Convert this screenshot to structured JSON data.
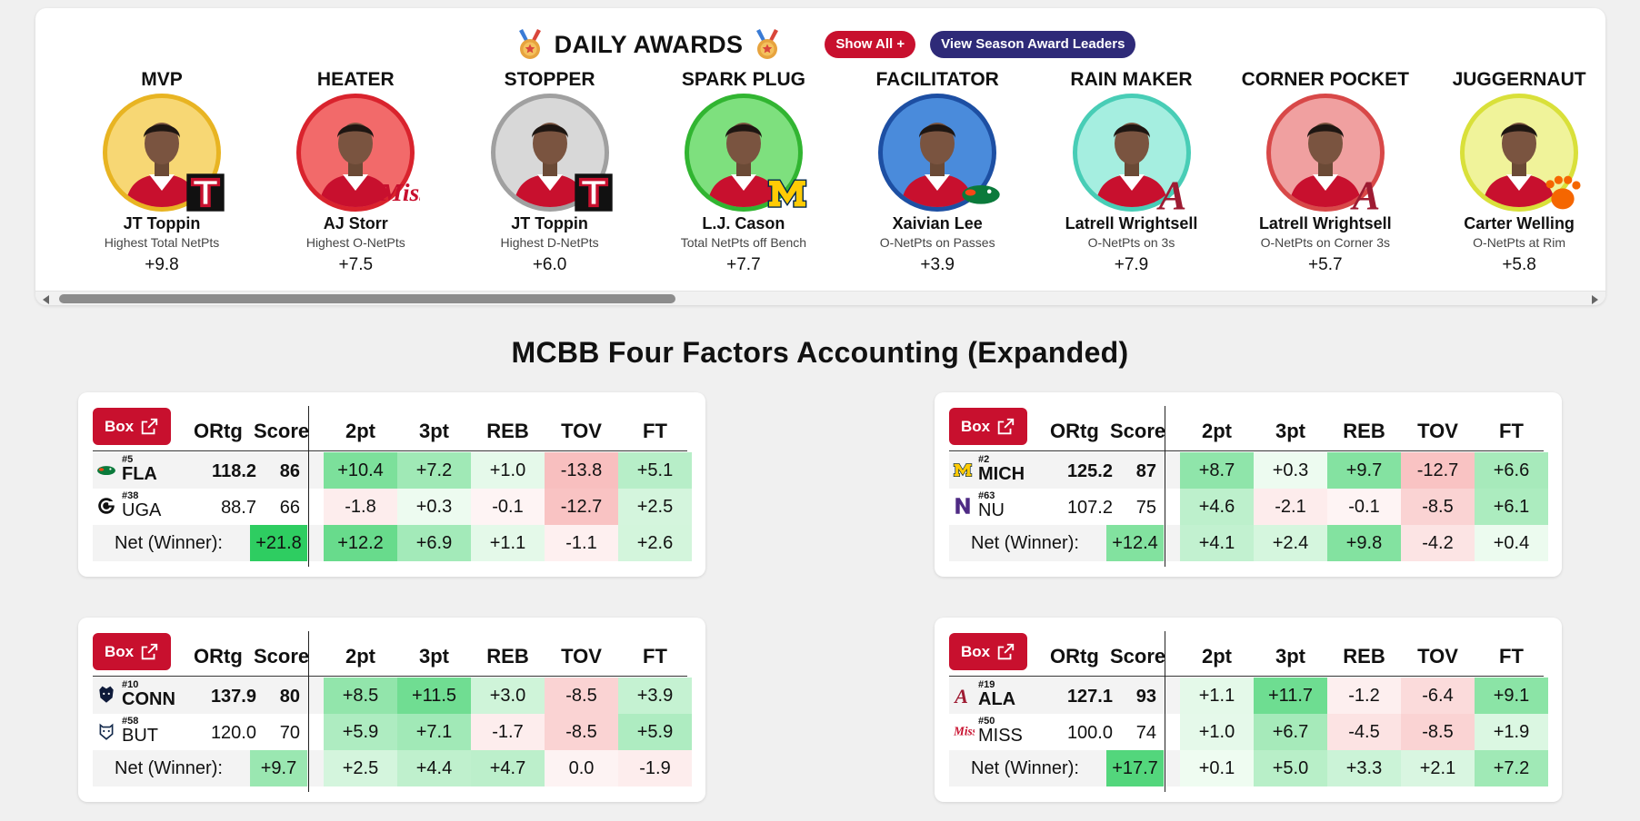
{
  "awards": {
    "title": "DAILY AWARDS",
    "show_all_label": "Show All +",
    "season_leaders_label": "View Season Award Leaders",
    "items": [
      {
        "title": "MVP",
        "player": "JT Toppin",
        "desc": "Highest Total NetPts",
        "value": "+9.8",
        "ring": "#e8b422",
        "bg": "#f7d774",
        "logo": "texas-tech-logo"
      },
      {
        "title": "HEATER",
        "player": "AJ Storr",
        "desc": "Highest O-NetPts",
        "value": "+7.5",
        "ring": "#d9232d",
        "bg": "#f26a6a",
        "logo": "ole-miss-logo"
      },
      {
        "title": "STOPPER",
        "player": "JT Toppin",
        "desc": "Highest D-NetPts",
        "value": "+6.0",
        "ring": "#a0a0a0",
        "bg": "#d8d8d8",
        "logo": "texas-tech-logo"
      },
      {
        "title": "SPARK PLUG",
        "player": "L.J. Cason",
        "desc": "Total NetPts off Bench",
        "value": "+7.7",
        "ring": "#31b531",
        "bg": "#7ee07e",
        "logo": "michigan-logo"
      },
      {
        "title": "FACILITATOR",
        "player": "Xaivian Lee",
        "desc": "O-NetPts on Passes",
        "value": "+3.9",
        "ring": "#1d4fa3",
        "bg": "#4a8bdb",
        "logo": "florida-logo"
      },
      {
        "title": "RAIN MAKER",
        "player": "Latrell Wrightsell",
        "desc": "O-NetPts on 3s",
        "value": "+7.9",
        "ring": "#48cdb6",
        "bg": "#a5eee0",
        "logo": "alabama-logo"
      },
      {
        "title": "CORNER POCKET",
        "player": "Latrell Wrightsell",
        "desc": "O-NetPts on Corner 3s",
        "value": "+5.7",
        "ring": "#d84848",
        "bg": "#f0a0a0",
        "logo": "alabama-logo"
      },
      {
        "title": "JUGGERNAUT",
        "player": "Carter Welling",
        "desc": "O-NetPts at Rim",
        "value": "+5.8",
        "ring": "#d9e03a",
        "bg": "#f0f39a",
        "logo": "clemson-logo"
      }
    ]
  },
  "section_title": "MCBB Four Factors Accounting (Expanded)",
  "table_headers": {
    "box": "Box",
    "ortg": "ORtg",
    "score": "Score",
    "factors": [
      "2pt",
      "3pt",
      "REB",
      "TOV",
      "FT"
    ]
  },
  "colors": {
    "brand_red": "#c8102e",
    "navy_pill": "#2e2a78",
    "positive_strong": "#2ecc5f",
    "negative": "#f7c6c6"
  },
  "games": [
    {
      "teams": [
        {
          "rank": "#5",
          "name": "FLA",
          "ortg": "118.2",
          "score": "86",
          "winner": true,
          "logo": "florida-logo",
          "factors": [
            "+10.4",
            "+7.2",
            "+1.0",
            "-13.8",
            "+5.1"
          ]
        },
        {
          "rank": "#38",
          "name": "UGA",
          "ortg": "88.7",
          "score": "66",
          "winner": false,
          "logo": "georgia-logo",
          "factors": [
            "-1.8",
            "+0.3",
            "-0.1",
            "-12.7",
            "+2.5"
          ]
        }
      ],
      "net": {
        "label": "Net (Winner):",
        "total": "+21.8",
        "factors": [
          "+12.2",
          "+6.9",
          "+1.1",
          "-1.1",
          "+2.6"
        ]
      }
    },
    {
      "teams": [
        {
          "rank": "#2",
          "name": "MICH",
          "ortg": "125.2",
          "score": "87",
          "winner": true,
          "logo": "michigan-logo",
          "factors": [
            "+8.7",
            "+0.3",
            "+9.7",
            "-12.7",
            "+6.6"
          ]
        },
        {
          "rank": "#63",
          "name": "NU",
          "ortg": "107.2",
          "score": "75",
          "winner": false,
          "logo": "northwestern-logo",
          "factors": [
            "+4.6",
            "-2.1",
            "-0.1",
            "-8.5",
            "+6.1"
          ]
        }
      ],
      "net": {
        "label": "Net (Winner):",
        "total": "+12.4",
        "factors": [
          "+4.1",
          "+2.4",
          "+9.8",
          "-4.2",
          "+0.4"
        ]
      }
    },
    {
      "teams": [
        {
          "rank": "#10",
          "name": "CONN",
          "ortg": "137.9",
          "score": "80",
          "winner": true,
          "logo": "uconn-logo",
          "factors": [
            "+8.5",
            "+11.5",
            "+3.0",
            "-8.5",
            "+3.9"
          ]
        },
        {
          "rank": "#58",
          "name": "BUT",
          "ortg": "120.0",
          "score": "70",
          "winner": false,
          "logo": "butler-logo",
          "factors": [
            "+5.9",
            "+7.1",
            "-1.7",
            "-8.5",
            "+5.9"
          ]
        }
      ],
      "net": {
        "label": "Net (Winner):",
        "total": "+9.7",
        "factors": [
          "+2.5",
          "+4.4",
          "+4.7",
          "0.0",
          "-1.9"
        ]
      }
    },
    {
      "teams": [
        {
          "rank": "#19",
          "name": "ALA",
          "ortg": "127.1",
          "score": "93",
          "winner": true,
          "logo": "alabama-logo",
          "factors": [
            "+1.1",
            "+11.7",
            "-1.2",
            "-6.4",
            "+9.1"
          ]
        },
        {
          "rank": "#50",
          "name": "MISS",
          "ortg": "100.0",
          "score": "74",
          "winner": false,
          "logo": "ole-miss-logo",
          "factors": [
            "+1.0",
            "+6.7",
            "-4.5",
            "-8.5",
            "+1.9"
          ]
        }
      ],
      "net": {
        "label": "Net (Winner):",
        "total": "+17.7",
        "factors": [
          "+0.1",
          "+5.0",
          "+3.3",
          "+2.1",
          "+7.2"
        ]
      }
    }
  ]
}
